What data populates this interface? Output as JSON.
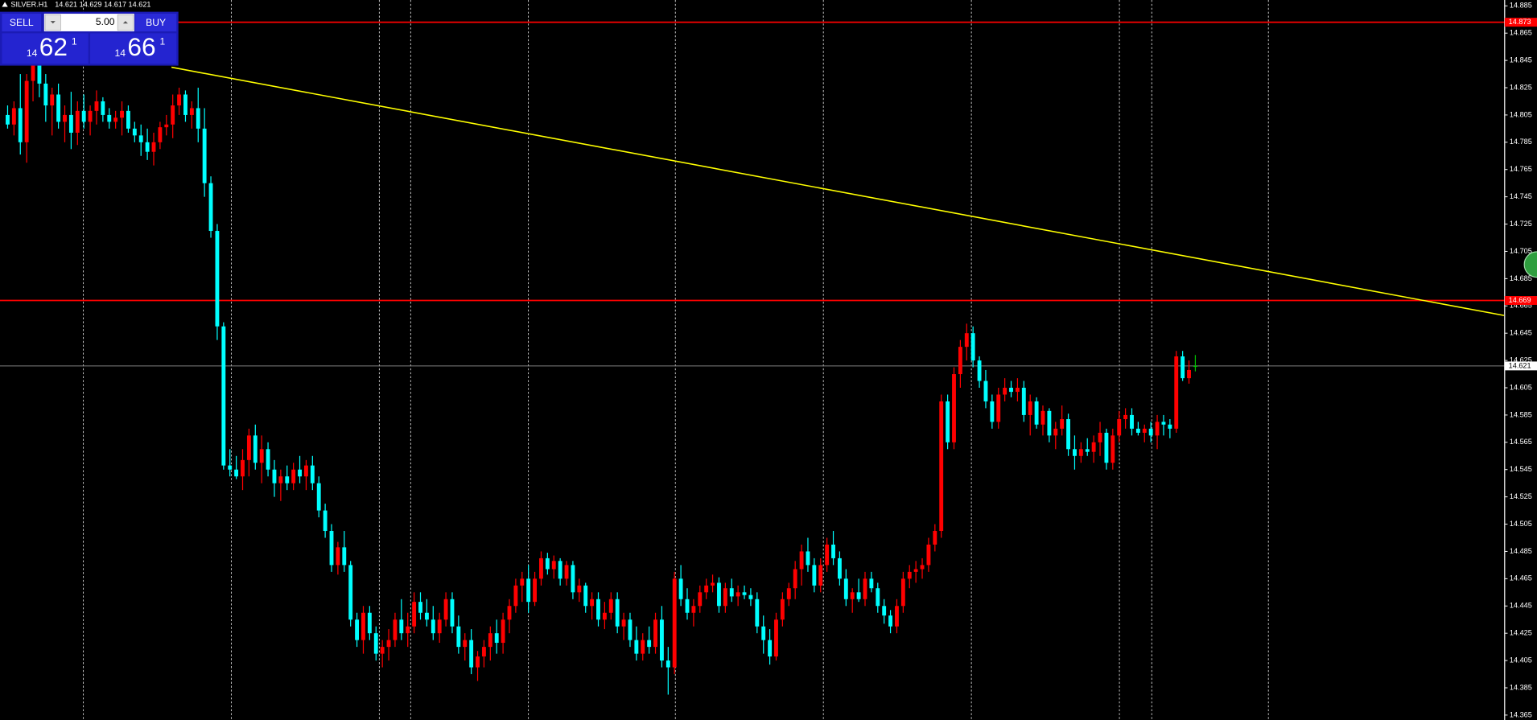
{
  "chart_data": {
    "type": "candlestick",
    "symbol": "SILVER.H1",
    "ohlc_text": "14.621 14.629 14.617 14.621",
    "up_color": "#ff0000",
    "down_color": "#00ffff",
    "doji_color": "#00c000",
    "ylim": [
      14.3614,
      14.8893
    ],
    "xlim": [
      -1.2,
      235.7
    ],
    "yticks": [
      14.885,
      14.865,
      14.845,
      14.825,
      14.805,
      14.785,
      14.765,
      14.745,
      14.725,
      14.705,
      14.685,
      14.665,
      14.645,
      14.625,
      14.605,
      14.585,
      14.565,
      14.545,
      14.525,
      14.505,
      14.485,
      14.465,
      14.445,
      14.425,
      14.405,
      14.385,
      14.365
    ],
    "hlines": [
      {
        "value": 14.873,
        "color": "#ff0000"
      },
      {
        "value": 14.669,
        "color": "#ff0000"
      },
      {
        "value": 14.621,
        "color": "#808080"
      }
    ],
    "trendline": {
      "x": [
        25.8,
        235.6
      ],
      "y": [
        14.84,
        14.658
      ],
      "color": "#ffff00"
    },
    "candles": [
      [
        14.805,
        14.812,
        14.795,
        14.798
      ],
      [
        14.798,
        14.815,
        14.79,
        14.81
      ],
      [
        14.81,
        14.835,
        14.776,
        14.785
      ],
      [
        14.785,
        14.835,
        14.77,
        14.83
      ],
      [
        14.83,
        14.848,
        14.815,
        14.842
      ],
      [
        14.842,
        14.846,
        14.818,
        14.828
      ],
      [
        14.828,
        14.835,
        14.8,
        14.812
      ],
      [
        14.812,
        14.825,
        14.79,
        14.82
      ],
      [
        14.82,
        14.828,
        14.795,
        14.8
      ],
      [
        14.8,
        14.812,
        14.785,
        14.805
      ],
      [
        14.805,
        14.822,
        14.78,
        14.792
      ],
      [
        14.792,
        14.815,
        14.783,
        14.808
      ],
      [
        14.808,
        14.82,
        14.795,
        14.8
      ],
      [
        14.8,
        14.812,
        14.79,
        14.808
      ],
      [
        14.808,
        14.823,
        14.798,
        14.815
      ],
      [
        14.815,
        14.818,
        14.8,
        14.805
      ],
      [
        14.805,
        14.81,
        14.795,
        14.8
      ],
      [
        14.8,
        14.808,
        14.795,
        14.803
      ],
      [
        14.803,
        14.815,
        14.79,
        14.808
      ],
      [
        14.808,
        14.812,
        14.792,
        14.795
      ],
      [
        14.795,
        14.8,
        14.785,
        14.79
      ],
      [
        14.79,
        14.798,
        14.775,
        14.785
      ],
      [
        14.785,
        14.795,
        14.772,
        14.778
      ],
      [
        14.778,
        14.792,
        14.768,
        14.785
      ],
      [
        14.785,
        14.8,
        14.78,
        14.796
      ],
      [
        14.796,
        14.805,
        14.79,
        14.798
      ],
      [
        14.798,
        14.82,
        14.788,
        14.812
      ],
      [
        14.812,
        14.825,
        14.805,
        14.82
      ],
      [
        14.82,
        14.823,
        14.8,
        14.805
      ],
      [
        14.805,
        14.815,
        14.795,
        14.81
      ],
      [
        14.81,
        14.825,
        14.785,
        14.795
      ],
      [
        14.795,
        14.81,
        14.745,
        14.755
      ],
      [
        14.755,
        14.76,
        14.715,
        14.72
      ],
      [
        14.72,
        14.725,
        14.64,
        14.65
      ],
      [
        14.65,
        14.653,
        14.545,
        14.548
      ],
      [
        14.548,
        14.56,
        14.54,
        14.545
      ],
      [
        14.545,
        14.555,
        14.538,
        14.54
      ],
      [
        14.54,
        14.56,
        14.53,
        14.552
      ],
      [
        14.552,
        14.575,
        14.54,
        14.57
      ],
      [
        14.57,
        14.578,
        14.545,
        14.55
      ],
      [
        14.55,
        14.57,
        14.535,
        14.56
      ],
      [
        14.56,
        14.565,
        14.54,
        14.545
      ],
      [
        14.545,
        14.552,
        14.525,
        14.535
      ],
      [
        14.535,
        14.545,
        14.522,
        14.54
      ],
      [
        14.54,
        14.548,
        14.53,
        14.535
      ],
      [
        14.535,
        14.55,
        14.53,
        14.545
      ],
      [
        14.545,
        14.555,
        14.535,
        14.54
      ],
      [
        14.54,
        14.552,
        14.53,
        14.548
      ],
      [
        14.548,
        14.555,
        14.53,
        14.535
      ],
      [
        14.535,
        14.54,
        14.51,
        14.515
      ],
      [
        14.515,
        14.52,
        14.495,
        14.5
      ],
      [
        14.5,
        14.505,
        14.47,
        14.475
      ],
      [
        14.475,
        14.492,
        14.468,
        14.488
      ],
      [
        14.488,
        14.5,
        14.47,
        14.475
      ],
      [
        14.475,
        14.478,
        14.43,
        14.435
      ],
      [
        14.435,
        14.44,
        14.415,
        14.42
      ],
      [
        14.42,
        14.445,
        14.41,
        14.44
      ],
      [
        14.44,
        14.445,
        14.42,
        14.425
      ],
      [
        14.425,
        14.43,
        14.405,
        14.41
      ],
      [
        14.41,
        14.42,
        14.4,
        14.415
      ],
      [
        14.415,
        14.428,
        14.405,
        14.42
      ],
      [
        14.42,
        14.44,
        14.415,
        14.435
      ],
      [
        14.435,
        14.45,
        14.42,
        14.425
      ],
      [
        14.425,
        14.44,
        14.415,
        14.43
      ],
      [
        14.43,
        14.455,
        14.425,
        14.448
      ],
      [
        14.448,
        14.455,
        14.435,
        14.44
      ],
      [
        14.44,
        14.45,
        14.43,
        14.435
      ],
      [
        14.435,
        14.445,
        14.42,
        14.425
      ],
      [
        14.425,
        14.44,
        14.418,
        14.435
      ],
      [
        14.435,
        14.455,
        14.43,
        14.45
      ],
      [
        14.45,
        14.455,
        14.425,
        14.43
      ],
      [
        14.43,
        14.438,
        14.41,
        14.415
      ],
      [
        14.415,
        14.425,
        14.405,
        14.42
      ],
      [
        14.42,
        14.428,
        14.395,
        14.4
      ],
      [
        14.4,
        14.412,
        14.39,
        14.408
      ],
      [
        14.408,
        14.42,
        14.4,
        14.415
      ],
      [
        14.415,
        14.43,
        14.405,
        14.425
      ],
      [
        14.425,
        14.435,
        14.41,
        14.418
      ],
      [
        14.418,
        14.44,
        14.41,
        14.435
      ],
      [
        14.435,
        14.45,
        14.425,
        14.445
      ],
      [
        14.445,
        14.465,
        14.44,
        14.46
      ],
      [
        14.46,
        14.47,
        14.448,
        14.465
      ],
      [
        14.465,
        14.475,
        14.44,
        14.448
      ],
      [
        14.448,
        14.47,
        14.445,
        14.465
      ],
      [
        14.465,
        14.485,
        14.46,
        14.48
      ],
      [
        14.48,
        14.484,
        14.468,
        14.472
      ],
      [
        14.472,
        14.482,
        14.465,
        14.478
      ],
      [
        14.478,
        14.48,
        14.46,
        14.465
      ],
      [
        14.465,
        14.478,
        14.46,
        14.475
      ],
      [
        14.475,
        14.478,
        14.45,
        14.455
      ],
      [
        14.455,
        14.465,
        14.448,
        14.46
      ],
      [
        14.46,
        14.462,
        14.44,
        14.445
      ],
      [
        14.445,
        14.455,
        14.435,
        14.45
      ],
      [
        14.45,
        14.455,
        14.43,
        14.435
      ],
      [
        14.435,
        14.448,
        14.428,
        14.44
      ],
      [
        14.44,
        14.455,
        14.435,
        14.45
      ],
      [
        14.45,
        14.455,
        14.425,
        14.43
      ],
      [
        14.43,
        14.44,
        14.42,
        14.435
      ],
      [
        14.435,
        14.44,
        14.415,
        14.42
      ],
      [
        14.42,
        14.43,
        14.405,
        14.41
      ],
      [
        14.41,
        14.425,
        14.405,
        14.42
      ],
      [
        14.42,
        14.43,
        14.41,
        14.415
      ],
      [
        14.415,
        14.44,
        14.41,
        14.435
      ],
      [
        14.435,
        14.445,
        14.4,
        14.405
      ],
      [
        14.405,
        14.415,
        14.38,
        14.4
      ],
      [
        14.4,
        14.47,
        14.395,
        14.465
      ],
      [
        14.465,
        14.475,
        14.445,
        14.45
      ],
      [
        14.45,
        14.458,
        14.435,
        14.44
      ],
      [
        14.44,
        14.45,
        14.43,
        14.445
      ],
      [
        14.445,
        14.46,
        14.44,
        14.455
      ],
      [
        14.455,
        14.465,
        14.45,
        14.46
      ],
      [
        14.46,
        14.468,
        14.455,
        14.462
      ],
      [
        14.462,
        14.466,
        14.44,
        14.445
      ],
      [
        14.445,
        14.462,
        14.44,
        14.458
      ],
      [
        14.458,
        14.465,
        14.448,
        14.452
      ],
      [
        14.452,
        14.46,
        14.445,
        14.455
      ],
      [
        14.455,
        14.46,
        14.45,
        14.453
      ],
      [
        14.453,
        14.458,
        14.445,
        14.45
      ],
      [
        14.45,
        14.455,
        14.425,
        14.43
      ],
      [
        14.43,
        14.438,
        14.41,
        14.42
      ],
      [
        14.42,
        14.428,
        14.402,
        14.408
      ],
      [
        14.408,
        14.44,
        14.405,
        14.435
      ],
      [
        14.435,
        14.455,
        14.43,
        14.45
      ],
      [
        14.45,
        14.462,
        14.445,
        14.458
      ],
      [
        14.458,
        14.478,
        14.45,
        14.472
      ],
      [
        14.472,
        14.49,
        14.46,
        14.485
      ],
      [
        14.485,
        14.495,
        14.47,
        14.475
      ],
      [
        14.475,
        14.48,
        14.455,
        14.46
      ],
      [
        14.46,
        14.48,
        14.455,
        14.475
      ],
      [
        14.475,
        14.495,
        14.47,
        14.49
      ],
      [
        14.49,
        14.5,
        14.475,
        14.48
      ],
      [
        14.48,
        14.485,
        14.46,
        14.465
      ],
      [
        14.465,
        14.472,
        14.445,
        14.45
      ],
      [
        14.45,
        14.458,
        14.44,
        14.455
      ],
      [
        14.455,
        14.465,
        14.448,
        14.45
      ],
      [
        14.45,
        14.47,
        14.445,
        14.465
      ],
      [
        14.465,
        14.47,
        14.455,
        14.458
      ],
      [
        14.458,
        14.462,
        14.44,
        14.445
      ],
      [
        14.445,
        14.45,
        14.432,
        14.438
      ],
      [
        14.438,
        14.442,
        14.425,
        14.43
      ],
      [
        14.43,
        14.45,
        14.425,
        14.445
      ],
      [
        14.445,
        14.47,
        14.44,
        14.465
      ],
      [
        14.465,
        14.475,
        14.458,
        14.47
      ],
      [
        14.47,
        14.478,
        14.462,
        14.472
      ],
      [
        14.472,
        14.48,
        14.465,
        14.475
      ],
      [
        14.475,
        14.495,
        14.47,
        14.49
      ],
      [
        14.49,
        14.505,
        14.485,
        14.5
      ],
      [
        14.5,
        14.6,
        14.495,
        14.595
      ],
      [
        14.595,
        14.6,
        14.56,
        14.565
      ],
      [
        14.565,
        14.62,
        14.56,
        14.615
      ],
      [
        14.615,
        14.64,
        14.605,
        14.635
      ],
      [
        14.635,
        14.652,
        14.625,
        14.645
      ],
      [
        14.645,
        14.65,
        14.62,
        14.625
      ],
      [
        14.625,
        14.628,
        14.605,
        14.61
      ],
      [
        14.61,
        14.618,
        14.59,
        14.595
      ],
      [
        14.595,
        14.6,
        14.575,
        14.58
      ],
      [
        14.58,
        14.605,
        14.575,
        14.6
      ],
      [
        14.6,
        14.612,
        14.595,
        14.605
      ],
      [
        14.605,
        14.61,
        14.598,
        14.602
      ],
      [
        14.602,
        14.612,
        14.595,
        14.605
      ],
      [
        14.605,
        14.61,
        14.58,
        14.585
      ],
      [
        14.585,
        14.6,
        14.57,
        14.595
      ],
      [
        14.595,
        14.598,
        14.575,
        14.578
      ],
      [
        14.578,
        14.592,
        14.57,
        14.588
      ],
      [
        14.588,
        14.59,
        14.565,
        14.57
      ],
      [
        14.57,
        14.58,
        14.56,
        14.575
      ],
      [
        14.575,
        14.592,
        14.57,
        14.582
      ],
      [
        14.582,
        14.586,
        14.555,
        14.56
      ],
      [
        14.56,
        14.57,
        14.545,
        14.555
      ],
      [
        14.555,
        14.565,
        14.55,
        14.56
      ],
      [
        14.56,
        14.568,
        14.555,
        14.558
      ],
      [
        14.558,
        14.57,
        14.55,
        14.565
      ],
      [
        14.565,
        14.58,
        14.555,
        14.572
      ],
      [
        14.572,
        14.575,
        14.545,
        14.55
      ],
      [
        14.55,
        14.575,
        14.545,
        14.57
      ],
      [
        14.57,
        14.588,
        14.565,
        14.582
      ],
      [
        14.582,
        14.59,
        14.575,
        14.585
      ],
      [
        14.585,
        14.59,
        14.57,
        14.575
      ],
      [
        14.575,
        14.58,
        14.57,
        14.572
      ],
      [
        14.572,
        14.578,
        14.565,
        14.575
      ],
      [
        14.575,
        14.58,
        14.565,
        14.57
      ],
      [
        14.57,
        14.585,
        14.56,
        14.58
      ],
      [
        14.58,
        14.585,
        14.57,
        14.578
      ],
      [
        14.578,
        14.582,
        14.568,
        14.575
      ],
      [
        14.575,
        14.632,
        14.572,
        14.628
      ],
      [
        14.628,
        14.632,
        14.61,
        14.612
      ],
      [
        14.612,
        14.625,
        14.608,
        14.618
      ],
      [
        14.621,
        14.629,
        14.617,
        14.621
      ]
    ]
  },
  "trade_panel": {
    "sell": "SELL",
    "buy": "BUY",
    "lots": "5.00",
    "bid": [
      "14",
      "62",
      "1"
    ],
    "ask": [
      "14",
      "66",
      "1"
    ]
  }
}
